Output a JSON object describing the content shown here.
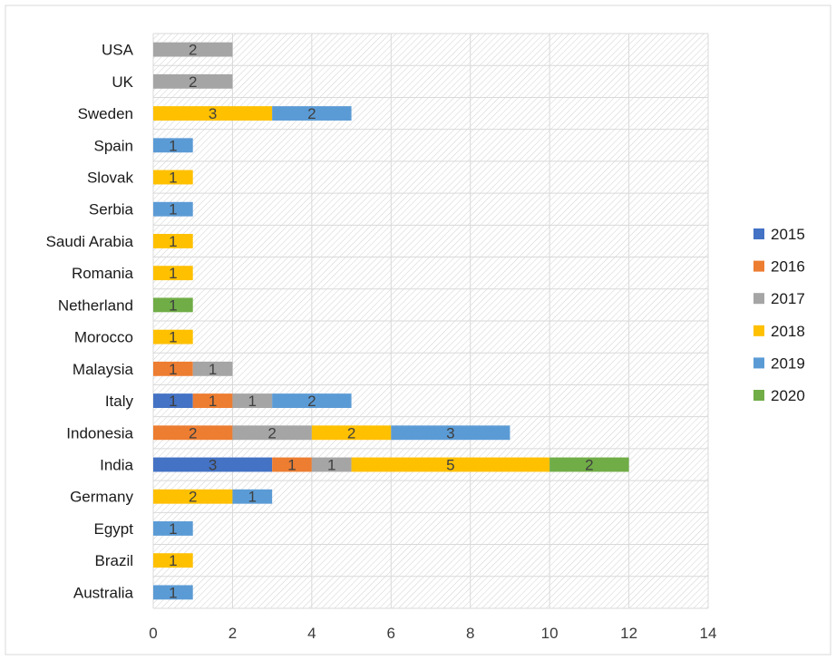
{
  "chart_data": {
    "type": "bar",
    "orientation": "horizontal",
    "stacked": true,
    "categories": [
      "Australia",
      "Brazil",
      "Egypt",
      "Germany",
      "India",
      "Indonesia",
      "Italy",
      "Malaysia",
      "Morocco",
      "Netherland",
      "Romania",
      "Saudi Arabia",
      "Serbia",
      "Slovak",
      "Spain",
      "Sweden",
      "UK",
      "USA"
    ],
    "series": [
      {
        "name": "2015",
        "color": "#4472C4",
        "values": [
          0,
          0,
          0,
          0,
          3,
          0,
          1,
          0,
          0,
          0,
          0,
          0,
          0,
          0,
          0,
          0,
          0,
          0
        ]
      },
      {
        "name": "2016",
        "color": "#ED7D31",
        "values": [
          0,
          0,
          0,
          0,
          1,
          2,
          1,
          1,
          0,
          0,
          0,
          0,
          0,
          0,
          0,
          0,
          0,
          0
        ]
      },
      {
        "name": "2017",
        "color": "#A5A5A5",
        "values": [
          0,
          0,
          0,
          0,
          1,
          2,
          1,
          1,
          0,
          0,
          0,
          0,
          0,
          0,
          0,
          0,
          2,
          2
        ]
      },
      {
        "name": "2018",
        "color": "#FFC000",
        "values": [
          0,
          1,
          0,
          2,
          5,
          2,
          0,
          0,
          1,
          0,
          1,
          1,
          0,
          1,
          0,
          3,
          0,
          0
        ]
      },
      {
        "name": "2019",
        "color": "#5B9BD5",
        "values": [
          1,
          0,
          1,
          1,
          0,
          3,
          2,
          0,
          0,
          0,
          0,
          0,
          1,
          0,
          1,
          2,
          0,
          0
        ]
      },
      {
        "name": "2020",
        "color": "#70AD47",
        "values": [
          0,
          0,
          0,
          0,
          2,
          0,
          0,
          0,
          0,
          1,
          0,
          0,
          0,
          0,
          0,
          0,
          0,
          0
        ]
      }
    ],
    "x_ticks": [
      0,
      2,
      4,
      6,
      8,
      10,
      12,
      14
    ],
    "xlim": [
      0,
      14
    ],
    "title": "",
    "xlabel": "",
    "ylabel": "",
    "grid": true,
    "data_labels": true,
    "legend": "right"
  }
}
